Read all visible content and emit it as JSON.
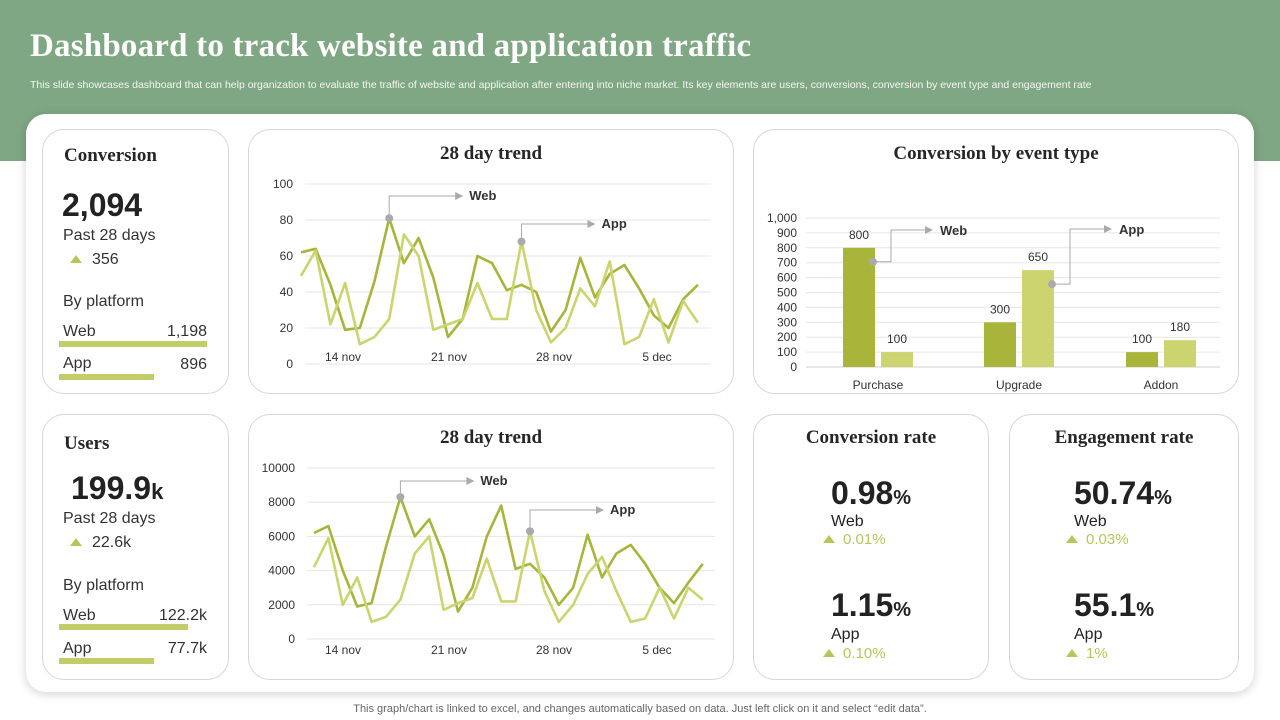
{
  "title": "Dashboard to track website and application traffic",
  "subtitle": "This slide showcases dashboard that can help organization to evaluate the traffic of website and application after entering into niche market. Its key elements are users, conversions, conversion by event type and engagement rate",
  "footer": "This graph/chart is linked to excel, and changes automatically based on data. Just left click on it and select “edit data”.",
  "colors": {
    "header": "#7fa783",
    "web": "#a9b53a",
    "app": "#cbd46e",
    "accent": "#b8c55a"
  },
  "conversion": {
    "title": "Conversion",
    "value": "2,094",
    "period": "Past 28 days",
    "delta": "356",
    "platform_label": "By platform",
    "web": {
      "label": "Web",
      "value": "1,198",
      "share": 1.0
    },
    "app": {
      "label": "App",
      "value": "896",
      "share": 0.64
    }
  },
  "users": {
    "title": "Users",
    "value": "199.9",
    "unit": "k",
    "period": "Past 28 days",
    "delta": "22.6k",
    "platform_label": "By platform",
    "web": {
      "label": "Web",
      "value": "122.2k",
      "share": 0.87
    },
    "app": {
      "label": "App",
      "value": "77.7k",
      "share": 0.64
    }
  },
  "conversion_rate": {
    "title": "Conversion  rate",
    "web": {
      "value": "0.98",
      "pct": "%",
      "label": "Web",
      "delta": "0.01%"
    },
    "app": {
      "value": "1.15",
      "pct": "%",
      "label": "App",
      "delta": "0.10%"
    }
  },
  "engagement_rate": {
    "title": "Engagement rate",
    "web": {
      "value": "50.74",
      "pct": "%",
      "label": "Web",
      "delta": "0.03%"
    },
    "app": {
      "value": "55.1",
      "pct": "%",
      "label": "App",
      "delta": "1%"
    }
  },
  "chart_data": [
    {
      "type": "line",
      "id": "conv_trend",
      "title": "28 day trend",
      "x_labels": [
        "14 nov",
        "21 nov",
        "28 nov",
        "5 dec"
      ],
      "y_ticks": [
        0,
        20,
        40,
        60,
        80,
        100
      ],
      "ylim": [
        0,
        100
      ],
      "series": [
        {
          "name": "Web",
          "color": "#a9b53a",
          "values": [
            62,
            64,
            44,
            19,
            20,
            46,
            81,
            56,
            70,
            48,
            15,
            25,
            60,
            56,
            41,
            44,
            40,
            18,
            30,
            59,
            37,
            50,
            55,
            42,
            27,
            20,
            36,
            44
          ]
        },
        {
          "name": "App",
          "color": "#cbd46e",
          "values": [
            49,
            63,
            22,
            45,
            11,
            15,
            25,
            72,
            60,
            19,
            22,
            25,
            45,
            25,
            25,
            68,
            30,
            12,
            20,
            42,
            32,
            57,
            11,
            15,
            36,
            12,
            35,
            23
          ]
        }
      ],
      "annotations": [
        {
          "label": "Web",
          "series": "Web"
        },
        {
          "label": "App",
          "series": "App"
        }
      ]
    },
    {
      "type": "bar",
      "id": "event_type",
      "title": "Conversion  by event type",
      "categories": [
        "Purchase",
        "Upgrade",
        "Addon"
      ],
      "y_ticks": [
        0,
        100,
        200,
        300,
        400,
        500,
        600,
        700,
        800,
        900,
        1000
      ],
      "y_tick_labels": [
        "0",
        "100",
        "200",
        "300",
        "400",
        "500",
        "600",
        "700",
        "800",
        "900",
        "1,000"
      ],
      "ylim": [
        0,
        1000
      ],
      "series": [
        {
          "name": "Web",
          "color": "#a9b53a",
          "values": [
            800,
            300,
            100
          ]
        },
        {
          "name": "App",
          "color": "#cbd46e",
          "values": [
            100,
            650,
            180
          ]
        }
      ],
      "annotations": [
        {
          "label": "Web"
        },
        {
          "label": "App"
        }
      ]
    },
    {
      "type": "line",
      "id": "users_trend",
      "title": "28 day trend",
      "x_labels": [
        "14 nov",
        "21 nov",
        "28 nov",
        "5 dec"
      ],
      "y_ticks": [
        0,
        2000,
        4000,
        6000,
        8000,
        10000
      ],
      "ylim": [
        0,
        10000
      ],
      "series": [
        {
          "name": "Web",
          "color": "#a9b53a",
          "values": [
            6200,
            6600,
            4000,
            1900,
            2100,
            5400,
            8300,
            6000,
            7000,
            4900,
            1600,
            3000,
            6000,
            7800,
            4100,
            4400,
            3600,
            2000,
            3000,
            6100,
            3600,
            5000,
            5500,
            4400,
            3000,
            2100,
            3300,
            4400
          ]
        },
        {
          "name": "App",
          "color": "#cbd46e",
          "values": [
            4200,
            5900,
            2000,
            3600,
            1000,
            1300,
            2300,
            5000,
            6000,
            1700,
            2100,
            2400,
            4700,
            2200,
            2200,
            6300,
            2800,
            1000,
            2000,
            3800,
            4800,
            2800,
            1000,
            1200,
            3000,
            1200,
            3000,
            2300
          ]
        }
      ],
      "annotations": [
        {
          "label": "Web",
          "series": "Web"
        },
        {
          "label": "App",
          "series": "App"
        }
      ]
    }
  ]
}
